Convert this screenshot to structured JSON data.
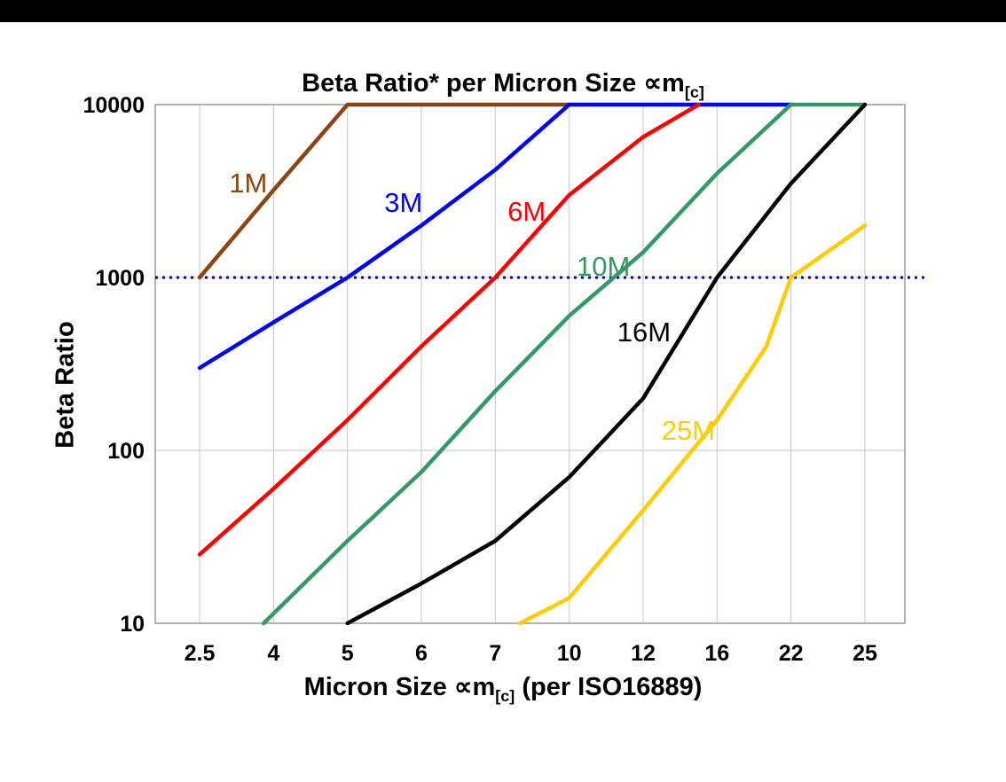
{
  "page": {
    "background": "#FFFFFF",
    "top_bar_color": "#000000"
  },
  "chart_data": {
    "type": "line",
    "title": {
      "prefix": "Beta Ratio* per Micron Size ",
      "symbol": "∝m",
      "subscript": "[c]"
    },
    "ylabel": "Beta Ratio",
    "xlabel": {
      "prefix": "Micron Size ",
      "symbol": "∝m",
      "subscript": "[c]",
      "suffix": " (per ISO16889)"
    },
    "y_scale": "log",
    "ylim": [
      10,
      10000
    ],
    "y_ticks": [
      10,
      100,
      1000,
      10000
    ],
    "categories": [
      2.5,
      4,
      5,
      6,
      7,
      10,
      12,
      16,
      22,
      25
    ],
    "grid": true,
    "legend_position": "inline-labels",
    "reference_line": {
      "beta": 1000,
      "color": "#0000CC",
      "style": "dotted"
    },
    "series": [
      {
        "name": "1M",
        "color": "#8B4513",
        "label_at": {
          "x": 3.1,
          "beta": 3500
        },
        "points": [
          [
            2.5,
            1000
          ],
          [
            4,
            3200
          ],
          [
            5,
            10000
          ],
          [
            10,
            10000
          ]
        ]
      },
      {
        "name": "3M",
        "color": "#0000FF",
        "label_at": {
          "x": 5.5,
          "beta": 2700
        },
        "points": [
          [
            2.5,
            300
          ],
          [
            4,
            550
          ],
          [
            5,
            1000
          ],
          [
            6,
            2000
          ],
          [
            7,
            4200
          ],
          [
            10,
            10000
          ],
          [
            22,
            10000
          ]
        ]
      },
      {
        "name": "6M",
        "color": "#FF0000",
        "label_at": {
          "x": 7.5,
          "beta": 2400
        },
        "points": [
          [
            2.5,
            25
          ],
          [
            4,
            60
          ],
          [
            5,
            150
          ],
          [
            6,
            400
          ],
          [
            7,
            1000
          ],
          [
            10,
            3000
          ],
          [
            12,
            6500
          ],
          [
            15,
            10000
          ]
        ]
      },
      {
        "name": "10M",
        "color": "#339966",
        "label_at": {
          "x": 10.2,
          "beta": 1150
        },
        "points": [
          [
            3.8,
            10
          ],
          [
            5,
            30
          ],
          [
            6,
            75
          ],
          [
            7,
            220
          ],
          [
            10,
            600
          ],
          [
            12,
            1400
          ],
          [
            16,
            4000
          ],
          [
            22,
            10000
          ],
          [
            25,
            10000
          ]
        ]
      },
      {
        "name": "16M",
        "color": "#000000",
        "label_at": {
          "x": 11.3,
          "beta": 480
        },
        "points": [
          [
            5,
            10
          ],
          [
            6,
            17
          ],
          [
            7,
            30
          ],
          [
            10,
            70
          ],
          [
            12,
            200
          ],
          [
            16,
            1000
          ],
          [
            22,
            3500
          ],
          [
            25,
            10000
          ]
        ]
      },
      {
        "name": "25M",
        "color": "#FFCC00",
        "label_at": {
          "x": 13,
          "beta": 130
        },
        "points": [
          [
            8,
            10
          ],
          [
            10,
            14
          ],
          [
            12,
            45
          ],
          [
            16,
            150
          ],
          [
            20,
            400
          ],
          [
            22,
            1000
          ],
          [
            25,
            2000
          ]
        ]
      }
    ]
  }
}
